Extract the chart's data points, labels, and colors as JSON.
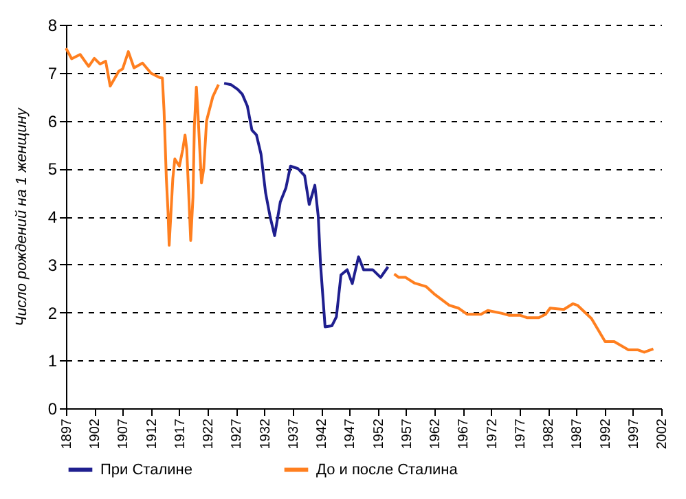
{
  "chart_data": {
    "type": "line",
    "ylabel": "Число рождений на 1 женщину",
    "xlim": [
      1897,
      2002
    ],
    "xticks": [
      1897,
      1902,
      1907,
      1912,
      1917,
      1922,
      1927,
      1932,
      1937,
      1942,
      1947,
      1952,
      1957,
      1962,
      1967,
      1972,
      1977,
      1982,
      1987,
      1992,
      1997,
      2002
    ],
    "ylim": [
      0,
      8
    ],
    "yticks": [
      0,
      1,
      2,
      3,
      4,
      5,
      6,
      7,
      8
    ],
    "grid": "y",
    "legend": "bottom",
    "line_style": "solid",
    "series": [
      {
        "name": "При Сталине",
        "color": "#1f1f8f",
        "x": [
          1924.9,
          1926.1,
          1927.3,
          1928.1,
          1929,
          1929.8,
          1930.6,
          1931.4,
          1932.2,
          1933,
          1933.8,
          1934.8,
          1935.8,
          1936.6,
          1937.9,
          1939.1,
          1939.9,
          1940.9,
          1941.5,
          1941.9,
          1942.7,
          1943.9,
          1944.7,
          1945.5,
          1946.6,
          1947.5,
          1948.6,
          1949.5,
          1951.1,
          1952.5,
          1953.8
        ],
        "values": [
          6.78,
          6.75,
          6.65,
          6.55,
          6.3,
          5.8,
          5.7,
          5.3,
          4.5,
          4.0,
          3.6,
          4.3,
          4.6,
          5.05,
          5.0,
          4.85,
          4.25,
          4.65,
          4.0,
          3.0,
          1.7,
          1.72,
          1.91,
          2.78,
          2.89,
          2.6,
          3.16,
          2.89,
          2.89,
          2.73,
          2.95
        ]
      },
      {
        "name": "До и после Сталина",
        "color": "#ff7f1f",
        "x": [
          1897,
          1898,
          1899.5,
          1901,
          1902,
          1903,
          1904,
          1904.8,
          1906.3,
          1907,
          1908,
          1909,
          1910.5,
          1912,
          1913.5,
          1914,
          1914.3,
          1914.7,
          1915,
          1915.2,
          1915.85,
          1916.2,
          1917,
          1917.6,
          1918,
          1918.3,
          1918.6,
          1919,
          1919.4,
          1919.65,
          1920,
          1920.3,
          1920.9,
          1921.3,
          1921.8,
          1922.9,
          1923.9,
          1939,
          1954.9,
          1955.7,
          1956.9,
          1958.5,
          1960.5,
          1962.1,
          1964.6,
          1966.2,
          1967.8,
          1970.2,
          1971.4,
          1973.9,
          1975.1,
          1977.1,
          1978.3,
          1980.4,
          1981.6,
          1982.4,
          1984.8,
          1986.4,
          1987.2,
          1989.7,
          1992.1,
          1993.7,
          1996.2,
          1997.8,
          1999,
          2000.6
        ],
        "values": [
          7.51,
          7.29,
          7.38,
          7.13,
          7.3,
          7.18,
          7.24,
          6.72,
          7.03,
          7.08,
          7.44,
          7.1,
          7.2,
          6.99,
          6.9,
          6.89,
          6.2,
          4.8,
          4.1,
          3.4,
          4.8,
          5.2,
          5.05,
          5.4,
          5.7,
          5.4,
          4.6,
          3.5,
          4.4,
          5.9,
          6.7,
          6.1,
          4.7,
          5.0,
          6.0,
          6.5,
          6.75,
          null,
          2.8,
          2.73,
          2.73,
          2.61,
          2.54,
          2.37,
          2.15,
          2.09,
          1.96,
          1.96,
          2.04,
          1.98,
          1.94,
          1.94,
          1.89,
          1.89,
          1.96,
          2.09,
          2.06,
          2.18,
          2.15,
          1.87,
          1.39,
          1.39,
          1.22,
          1.22,
          1.17,
          1.24
        ]
      }
    ]
  }
}
